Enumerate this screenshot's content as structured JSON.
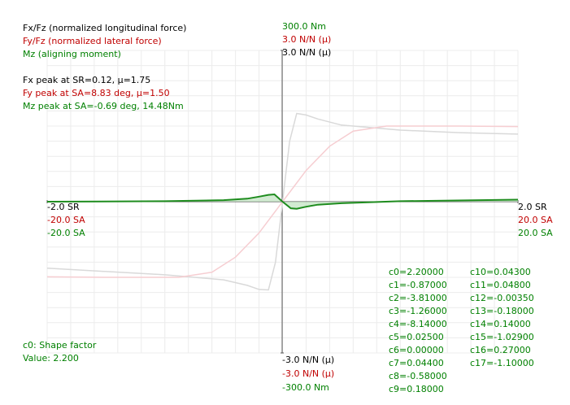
{
  "chart_data": {
    "type": "line",
    "series": [
      {
        "name": "Fx/Fz (normalized longitudinal force)",
        "color": "#000000",
        "line_color": "#d9d9d9",
        "x": [
          -2,
          -1,
          -0.5,
          -0.3,
          -0.2,
          -0.12,
          -0.06,
          0,
          0.06,
          0.12,
          0.2,
          0.3,
          0.5,
          1,
          1.5,
          2
        ],
        "values": [
          -1.32,
          -1.45,
          -1.55,
          -1.66,
          -1.74,
          -1.75,
          -1.2,
          0,
          1.2,
          1.75,
          1.72,
          1.64,
          1.52,
          1.42,
          1.37,
          1.34
        ],
        "xlim": [
          -2,
          2
        ],
        "ylim": [
          -3,
          3
        ],
        "xticks": [
          {
            "value": -2,
            "label": "-2.0 SR"
          },
          {
            "value": 2,
            "label": "2.0 SR"
          }
        ],
        "yticks": [
          {
            "value": 3,
            "label": "3.0 N/N (μ)"
          },
          {
            "value": -3,
            "label": "-3.0 N/N (μ)"
          }
        ]
      },
      {
        "name": "Fy/Fz (normalized lateral force)",
        "color": "#c00000",
        "line_color": "#f6cdd1",
        "x": [
          -20,
          -15,
          -10,
          -8.83,
          -6,
          -4,
          -2,
          0,
          2,
          4,
          6,
          8.83,
          10,
          15,
          20
        ],
        "values": [
          -1.49,
          -1.5,
          -1.5,
          -1.5,
          -1.4,
          -1.1,
          -0.62,
          0,
          0.62,
          1.1,
          1.4,
          1.5,
          1.5,
          1.5,
          1.49
        ],
        "xlim": [
          -20,
          20
        ],
        "ylim": [
          -3,
          3
        ],
        "xticks": [
          {
            "value": -20,
            "label": "-20.0 SA"
          },
          {
            "value": 20,
            "label": "20.0 SA"
          }
        ],
        "yticks": [
          {
            "value": 3,
            "label": "3.0 N/N (μ)"
          },
          {
            "value": -3,
            "label": "-3.0 N/N (μ)"
          }
        ]
      },
      {
        "name": "Mz (aligning moment)",
        "color": "#008000",
        "line_color": "#1e8c1e",
        "x": [
          -20,
          -10,
          -5,
          -3,
          -2,
          -1.2,
          -0.69,
          0,
          0.7,
          1.2,
          2,
          3,
          5,
          10,
          20
        ],
        "values": [
          0,
          1,
          3,
          6,
          10,
          13.5,
          14.48,
          0,
          -13,
          -14,
          -10,
          -6,
          -3,
          1,
          4
        ],
        "xlim": [
          -20,
          20
        ],
        "ylim": [
          -300,
          300
        ],
        "xticks": [
          {
            "value": -20,
            "label": "-20.0 SA"
          },
          {
            "value": 20,
            "label": "20.0 SA"
          }
        ],
        "yticks": [
          {
            "value": 300,
            "label": "300.0 Nm"
          },
          {
            "value": -300,
            "label": "-300.0 Nm"
          }
        ]
      }
    ],
    "annotations": [
      "Fx peak at SR=0.12, μ=1.75",
      "Fy peak at SA=8.83 deg, μ=1.50",
      "Mz peak at SA=-0.69 deg, 14.48Nm"
    ],
    "parameters": [
      "c0=2.20000",
      "c1=-0.87000",
      "c2=-3.81000",
      "c3=-1.26000",
      "c4=-8.14000",
      "c5=0.02500",
      "c6=0.00000",
      "c7=0.04400",
      "c8=-0.58000",
      "c9=0.18000",
      "c10=0.04300",
      "c11=0.04800",
      "c12=-0.00350",
      "c13=-0.18000",
      "c14=0.14000",
      "c15=-1.02900",
      "c16=0.27000",
      "c17=-1.10000"
    ],
    "status": [
      "c0: Shape factor",
      "Value: 2.200"
    ]
  }
}
